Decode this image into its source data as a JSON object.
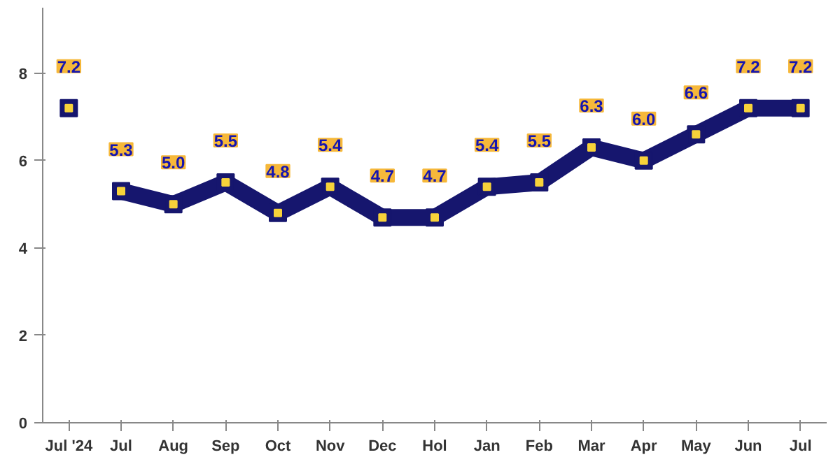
{
  "chart_data": {
    "type": "line",
    "categories": [
      "Jul '24",
      "Jul",
      "Aug",
      "Sep",
      "Oct",
      "Nov",
      "Dec",
      "Hol",
      "Jan",
      "Feb",
      "Mar",
      "Apr",
      "May",
      "Jun",
      "Jul"
    ],
    "series": [
      {
        "color": "#16166e",
        "values": [
          7.2,
          null,
          null,
          null,
          null,
          null,
          null,
          null,
          null,
          null,
          null,
          null,
          null,
          null,
          null
        ],
        "value_labels": [
          "7.2",
          null,
          null,
          null,
          null,
          null,
          null,
          null,
          null,
          null,
          null,
          null,
          null,
          null,
          null
        ]
      },
      {
        "color": "#16166e",
        "values": [
          null,
          5.3,
          5.0,
          5.5,
          4.8,
          5.4,
          4.7,
          4.7,
          5.4,
          5.5,
          6.3,
          6.0,
          6.6,
          7.2,
          7.2
        ],
        "value_labels": [
          null,
          "5.3",
          "5.0",
          "5.5",
          "4.8",
          "5.4",
          "4.7",
          "4.7",
          "5.4",
          "5.5",
          "6.3",
          "6.0",
          "6.6",
          "7.2",
          "7.2"
        ]
      }
    ],
    "ylim": [
      0,
      9.5
    ],
    "yticks": [
      0,
      2,
      4,
      6,
      8
    ],
    "grid": false,
    "marker": "square",
    "line_style": "solid"
  }
}
